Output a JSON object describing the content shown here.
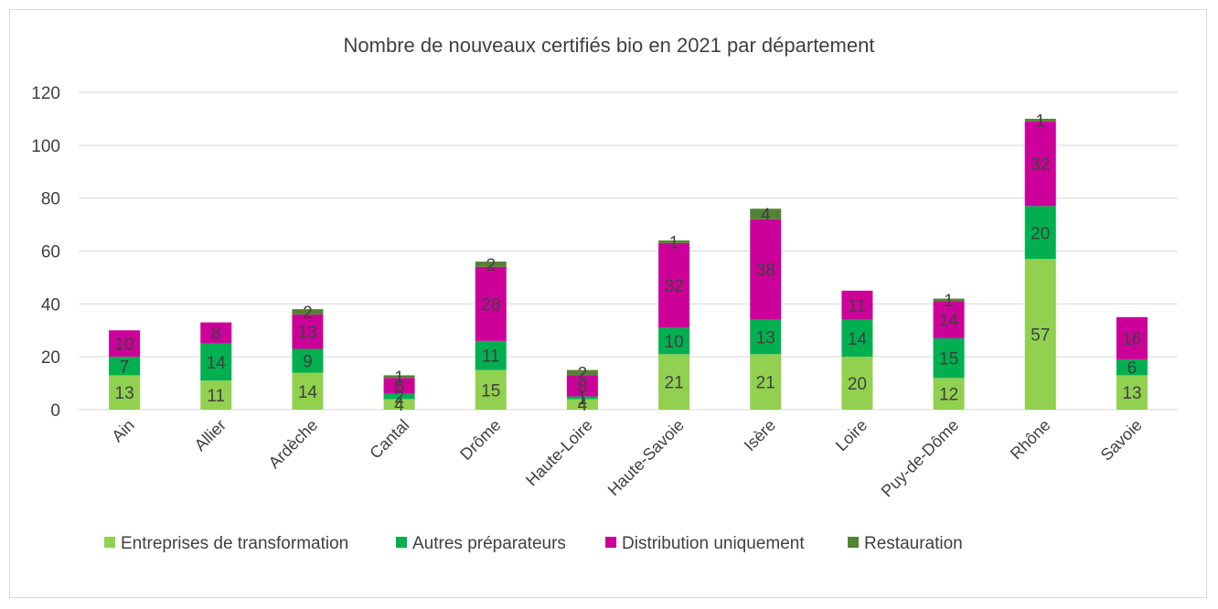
{
  "chart_data": {
    "type": "bar",
    "stacked": true,
    "title": "Nombre de nouveaux certifiés bio en 2021 par département",
    "xlabel": "",
    "ylabel": "",
    "ylim": [
      0,
      120
    ],
    "yticks": [
      0,
      20,
      40,
      60,
      80,
      100,
      120
    ],
    "grid": true,
    "legend_position": "bottom",
    "categories": [
      "Ain",
      "Allier",
      "Ardèche",
      "Cantal",
      "Drôme",
      "Haute-Loire",
      "Haute-Savoie",
      "Isère",
      "Loire",
      "Puy-de-Dôme",
      "Rhône",
      "Savoie"
    ],
    "series": [
      {
        "name": "Entreprises de transformation",
        "color": "#92d050",
        "values": [
          13,
          11,
          14,
          4,
          15,
          4,
          21,
          21,
          20,
          12,
          57,
          13
        ]
      },
      {
        "name": "Autres préparateurs",
        "color": "#00b050",
        "values": [
          7,
          14,
          9,
          2,
          11,
          1,
          10,
          13,
          14,
          15,
          20,
          6
        ]
      },
      {
        "name": "Distribution uniquement",
        "color": "#cc0099",
        "values": [
          10,
          8,
          13,
          6,
          28,
          8,
          32,
          38,
          11,
          14,
          32,
          16
        ]
      },
      {
        "name": "Restauration",
        "color": "#548235",
        "values": [
          null,
          null,
          2,
          1,
          2,
          2,
          1,
          4,
          null,
          1,
          1,
          null
        ]
      }
    ]
  }
}
